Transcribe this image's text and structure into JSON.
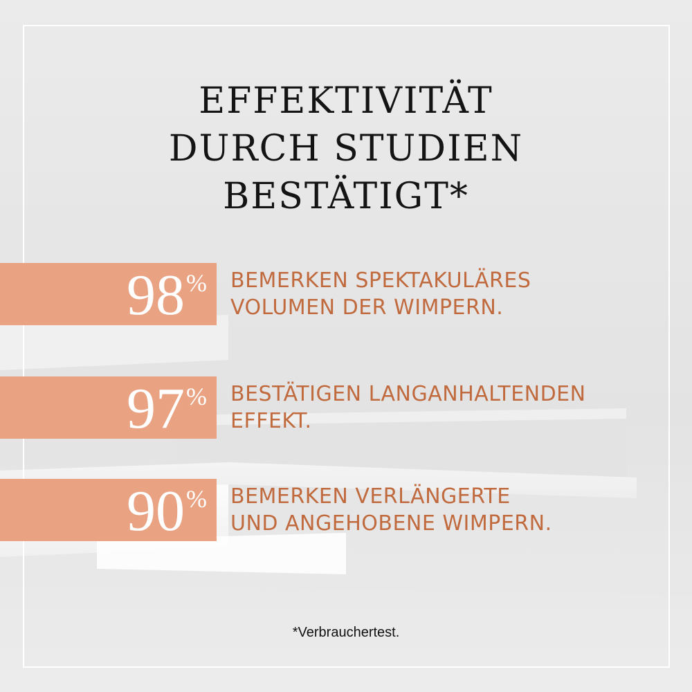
{
  "headline": {
    "line1": "EFFEKTIVITÄT",
    "line2": "DURCH STUDIEN",
    "line3": "BESTÄTIGT*"
  },
  "stats": [
    {
      "value": "98",
      "unit": "%",
      "line1": "BEMERKEN SPEKTAKULÄRES",
      "line2": "VOLUMEN DER WIMPERN."
    },
    {
      "value": "97",
      "unit": "%",
      "line1": "BESTÄTIGEN LANGANHALTENDEN",
      "line2": "EFFEKT."
    },
    {
      "value": "90",
      "unit": "%",
      "line1": "BEMERKEN VERLÄNGERTE",
      "line2": "UND ANGEHOBENE WIMPERN."
    }
  ],
  "footnote": "*Verbrauchertest.",
  "colors": {
    "band": "#e9a383",
    "stat_text": "#c06a3e",
    "headline": "#141414",
    "frame": "#ffffff"
  }
}
